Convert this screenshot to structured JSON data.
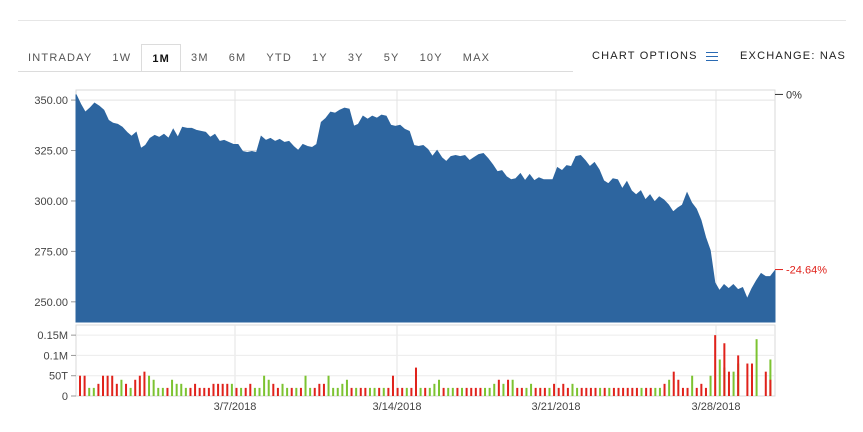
{
  "tabs": [
    {
      "label": "INTRADAY"
    },
    {
      "label": "1W"
    },
    {
      "label": "1M",
      "active": true
    },
    {
      "label": "3M"
    },
    {
      "label": "6M"
    },
    {
      "label": "YTD"
    },
    {
      "label": "1Y"
    },
    {
      "label": "3Y"
    },
    {
      "label": "5Y"
    },
    {
      "label": "10Y"
    },
    {
      "label": "MAX"
    }
  ],
  "chart_options_label": "CHART OPTIONS",
  "exchange_label": "EXCHANGE: NAS",
  "colors": {
    "area": "#2d659f",
    "up": "#7cc331",
    "down": "#e0221b",
    "neg_pct": "#e0221b"
  },
  "chart_data": [
    {
      "type": "area",
      "ylim": [
        240,
        355
      ],
      "yticks": [
        "350.00",
        "325.00",
        "300.00",
        "275.00",
        "250.00"
      ],
      "ytick_values": [
        350,
        325,
        300,
        275,
        250
      ],
      "xticks": [
        "3/7/2018",
        "3/14/2018",
        "3/21/2018",
        "3/28/2018"
      ],
      "pct_labels": [
        "0%",
        "-24.64%"
      ],
      "pct_values": [
        0,
        -24.64
      ],
      "pct_anchor": [
        352.8,
        266
      ],
      "values": [
        352.8,
        348,
        344,
        346,
        348.5,
        347,
        345,
        340,
        338.5,
        338,
        336.5,
        334,
        332,
        334,
        326,
        327.5,
        331,
        332.5,
        331.5,
        333,
        331,
        335.5,
        331.5,
        336.5,
        336,
        336,
        335,
        334.5,
        334,
        331.5,
        333,
        329.5,
        330,
        329,
        328,
        328,
        324.5,
        324,
        324.5,
        324,
        332,
        330,
        331,
        329.5,
        330.5,
        329,
        329.5,
        327,
        325,
        328,
        327,
        326.5,
        328,
        339,
        341,
        344,
        343.5,
        345,
        346,
        345.5,
        337,
        338,
        342,
        340.5,
        342,
        341,
        342.5,
        342,
        337.5,
        337,
        337.5,
        335.5,
        334.5,
        327.5,
        327,
        327.5,
        325.5,
        322,
        325,
        321.5,
        319.5,
        322,
        322.5,
        322,
        322.5,
        320,
        321.5,
        323,
        323.5,
        321,
        318,
        314.5,
        315,
        312,
        310.5,
        311,
        313.5,
        310,
        313,
        310,
        311.5,
        310.5,
        310.5,
        310.5,
        316.5,
        315,
        317.5,
        317,
        322,
        322.5,
        320,
        317,
        319,
        315.5,
        310,
        308.5,
        311,
        310.5,
        306,
        309.5,
        305,
        303,
        305,
        300.5,
        303,
        299.5,
        302,
        300.5,
        298,
        294.5,
        296.5,
        298,
        304,
        299,
        296,
        290.5,
        282,
        275.5,
        259.5,
        255.5,
        258.5,
        256.5,
        258.5,
        256,
        257,
        251.5,
        256.5,
        260.5,
        264,
        262.5,
        262.5,
        265.5
      ]
    },
    {
      "type": "bar",
      "ylim": [
        0,
        0.175
      ],
      "yticks": [
        "0.15M",
        "0.1M",
        "50T",
        "0"
      ],
      "ytick_values": [
        0.15,
        0.1,
        0.05,
        0
      ],
      "xticks": [
        "3/7/2018",
        "3/14/2018",
        "3/21/2018",
        "3/28/2018"
      ],
      "series": [
        {
          "name": "up",
          "values": [
            0,
            0,
            0.02,
            0.02,
            0,
            0,
            0,
            0,
            0,
            0.04,
            0,
            0.02,
            0,
            0,
            0,
            0.05,
            0.04,
            0.02,
            0.02,
            0,
            0.04,
            0.03,
            0.03,
            0.02,
            0,
            0,
            0,
            0,
            0,
            0,
            0,
            0,
            0,
            0.03,
            0,
            0.02,
            0,
            0,
            0.02,
            0.02,
            0.05,
            0.04,
            0,
            0,
            0.03,
            0.02,
            0,
            0.02,
            0,
            0.05,
            0.02,
            0,
            0,
            0,
            0.05,
            0.02,
            0.02,
            0.03,
            0.04,
            0,
            0.02,
            0,
            0,
            0.02,
            0.02,
            0,
            0.02,
            0,
            0,
            0,
            0,
            0.02,
            0,
            0,
            0.02,
            0,
            0.02,
            0.03,
            0.04,
            0,
            0.02,
            0.02,
            0,
            0.02,
            0,
            0,
            0,
            0,
            0.02,
            0.02,
            0.03,
            0,
            0.03,
            0,
            0.04,
            0,
            0,
            0.02,
            0.03,
            0,
            0,
            0,
            0.02,
            0,
            0,
            0,
            0,
            0.03,
            0.02,
            0,
            0,
            0,
            0,
            0.02,
            0,
            0.02,
            0,
            0,
            0,
            0,
            0,
            0,
            0.02,
            0,
            0,
            0.02,
            0.02,
            0,
            0.04,
            0,
            0,
            0,
            0,
            0.05,
            0,
            0,
            0,
            0.05,
            0,
            0.09,
            0.07,
            0,
            0.06,
            0.08,
            0,
            0,
            0.05,
            0.14,
            0,
            0,
            0.09
          ]
        },
        {
          "name": "down",
          "values": [
            0.05,
            0.05,
            0,
            0,
            0.03,
            0.05,
            0.05,
            0.05,
            0.03,
            0,
            0.03,
            0,
            0.04,
            0.05,
            0.06,
            0,
            0,
            0,
            0,
            0.02,
            0,
            0,
            0,
            0,
            0.02,
            0.03,
            0.02,
            0.02,
            0.02,
            0.03,
            0.03,
            0.03,
            0.03,
            0,
            0.02,
            0,
            0.02,
            0.03,
            0,
            0,
            0,
            0,
            0.03,
            0.02,
            0,
            0,
            0.02,
            0,
            0.02,
            0,
            0,
            0.02,
            0.03,
            0.03,
            0,
            0,
            0,
            0,
            0,
            0.02,
            0,
            0.02,
            0.02,
            0,
            0,
            0.02,
            0,
            0.02,
            0.05,
            0.02,
            0.02,
            0,
            0.02,
            0.07,
            0,
            0.02,
            0,
            0,
            0,
            0.02,
            0,
            0,
            0.02,
            0,
            0.02,
            0.02,
            0.02,
            0.02,
            0,
            0,
            0,
            0.04,
            0,
            0.04,
            0,
            0.02,
            0.02,
            0,
            0,
            0.02,
            0.02,
            0.02,
            0,
            0.03,
            0.02,
            0.03,
            0.02,
            0,
            0,
            0.02,
            0.02,
            0.02,
            0.02,
            0,
            0.02,
            0,
            0.02,
            0.02,
            0.02,
            0.02,
            0.02,
            0.02,
            0,
            0.02,
            0.02,
            0,
            0,
            0.03,
            0,
            0.06,
            0.04,
            0.02,
            0.02,
            0,
            0.02,
            0.03,
            0.02,
            0,
            0.15,
            0,
            0.13,
            0.06,
            0,
            0.1,
            0,
            0.08,
            0.08,
            0,
            0,
            0.06,
            0.04,
            0
          ]
        }
      ]
    }
  ]
}
